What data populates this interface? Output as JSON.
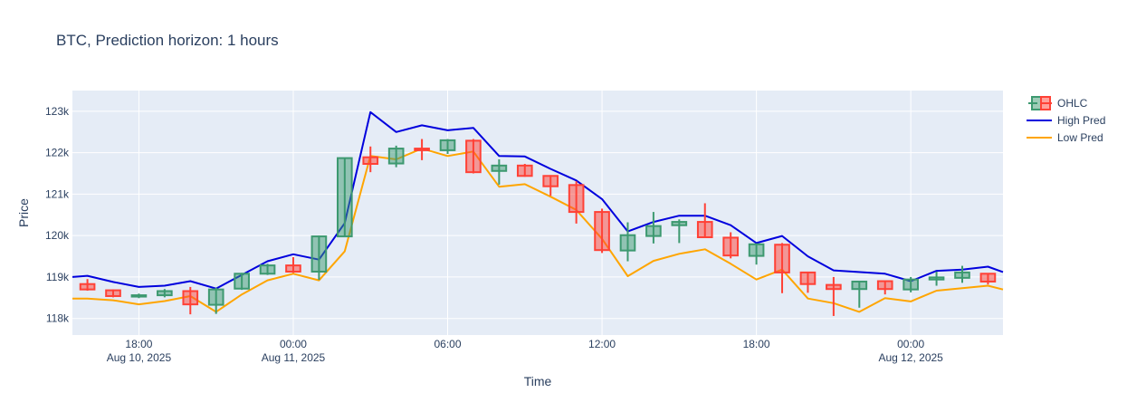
{
  "chart_data": {
    "type": "candlestick",
    "title": "BTC,  Prediction horizon: 1 hours",
    "xlabel": "Time",
    "ylabel": "Price",
    "ylim": [
      117600,
      123500
    ],
    "xlim": [
      "2025-08-10T15:25",
      "2025-08-12T03:35"
    ],
    "y_ticks": [
      {
        "value": 118000,
        "label": "118k"
      },
      {
        "value": 119000,
        "label": "119k"
      },
      {
        "value": 120000,
        "label": "120k"
      },
      {
        "value": 121000,
        "label": "121k"
      },
      {
        "value": 122000,
        "label": "122k"
      },
      {
        "value": 123000,
        "label": "123k"
      }
    ],
    "x_ticks": [
      {
        "time": "2025-08-10T18:00",
        "label": "18:00",
        "sublabel": "Aug 10, 2025"
      },
      {
        "time": "2025-08-11T00:00",
        "label": "00:00",
        "sublabel": "Aug 11, 2025"
      },
      {
        "time": "2025-08-11T06:00",
        "label": "06:00",
        "sublabel": ""
      },
      {
        "time": "2025-08-11T12:00",
        "label": "12:00",
        "sublabel": ""
      },
      {
        "time": "2025-08-11T18:00",
        "label": "18:00",
        "sublabel": ""
      },
      {
        "time": "2025-08-12T00:00",
        "label": "00:00",
        "sublabel": "Aug 12, 2025"
      }
    ],
    "grid": true,
    "legend_position": "top-right",
    "legend": [
      {
        "name": "OHLC",
        "kind": "candle"
      },
      {
        "name": "High Pred",
        "kind": "line",
        "color": "#0000dd"
      },
      {
        "name": "Low Pred",
        "kind": "line",
        "color": "#ffa500"
      }
    ],
    "colors": {
      "increasing": "#3d9970",
      "decreasing": "#ff4136",
      "high_pred": "#0000dd",
      "low_pred": "#ffa500",
      "plot_bg": "#e5ecf6",
      "grid": "#ffffff",
      "text": "#2a3f5f"
    },
    "ohlc": [
      {
        "t": "2025-08-10T16:00",
        "o": 118830,
        "h": 118950,
        "l": 118670,
        "c": 118700
      },
      {
        "t": "2025-08-10T17:00",
        "o": 118680,
        "h": 118700,
        "l": 118510,
        "c": 118540
      },
      {
        "t": "2025-08-10T18:00",
        "o": 118530,
        "h": 118600,
        "l": 118490,
        "c": 118560
      },
      {
        "t": "2025-08-10T19:00",
        "o": 118560,
        "h": 118710,
        "l": 118510,
        "c": 118660
      },
      {
        "t": "2025-08-10T20:00",
        "o": 118660,
        "h": 118760,
        "l": 118100,
        "c": 118340
      },
      {
        "t": "2025-08-10T21:00",
        "o": 118330,
        "h": 118740,
        "l": 118110,
        "c": 118700
      },
      {
        "t": "2025-08-10T22:00",
        "o": 118720,
        "h": 119100,
        "l": 118690,
        "c": 119080
      },
      {
        "t": "2025-08-10T23:00",
        "o": 119080,
        "h": 119320,
        "l": 119050,
        "c": 119280
      },
      {
        "t": "2025-08-11T00:00",
        "o": 119280,
        "h": 119480,
        "l": 119100,
        "c": 119130
      },
      {
        "t": "2025-08-11T01:00",
        "o": 119130,
        "h": 120000,
        "l": 118930,
        "c": 119980
      },
      {
        "t": "2025-08-11T02:00",
        "o": 119980,
        "h": 121880,
        "l": 119980,
        "c": 121870
      },
      {
        "t": "2025-08-11T03:00",
        "o": 121890,
        "h": 122150,
        "l": 121530,
        "c": 121730
      },
      {
        "t": "2025-08-11T04:00",
        "o": 121740,
        "h": 122170,
        "l": 121650,
        "c": 122100
      },
      {
        "t": "2025-08-11T05:00",
        "o": 122100,
        "h": 122330,
        "l": 121820,
        "c": 122060
      },
      {
        "t": "2025-08-11T06:00",
        "o": 122060,
        "h": 122330,
        "l": 121970,
        "c": 122300
      },
      {
        "t": "2025-08-11T07:00",
        "o": 122290,
        "h": 122330,
        "l": 121500,
        "c": 121530
      },
      {
        "t": "2025-08-11T08:00",
        "o": 121560,
        "h": 121840,
        "l": 121230,
        "c": 121690
      },
      {
        "t": "2025-08-11T09:00",
        "o": 121690,
        "h": 121730,
        "l": 121420,
        "c": 121440
      },
      {
        "t": "2025-08-11T10:00",
        "o": 121440,
        "h": 121460,
        "l": 120960,
        "c": 121190
      },
      {
        "t": "2025-08-11T11:00",
        "o": 121220,
        "h": 121310,
        "l": 120290,
        "c": 120570
      },
      {
        "t": "2025-08-11T12:00",
        "o": 120570,
        "h": 120650,
        "l": 119580,
        "c": 119650
      },
      {
        "t": "2025-08-11T13:00",
        "o": 119640,
        "h": 120320,
        "l": 119380,
        "c": 120010
      },
      {
        "t": "2025-08-11T14:00",
        "o": 119990,
        "h": 120570,
        "l": 119810,
        "c": 120230
      },
      {
        "t": "2025-08-11T15:00",
        "o": 120250,
        "h": 120390,
        "l": 119820,
        "c": 120330
      },
      {
        "t": "2025-08-11T16:00",
        "o": 120330,
        "h": 120780,
        "l": 119940,
        "c": 119960
      },
      {
        "t": "2025-08-11T17:00",
        "o": 119950,
        "h": 120080,
        "l": 119450,
        "c": 119520
      },
      {
        "t": "2025-08-11T18:00",
        "o": 119510,
        "h": 119810,
        "l": 119300,
        "c": 119790
      },
      {
        "t": "2025-08-11T19:00",
        "o": 119780,
        "h": 119820,
        "l": 118610,
        "c": 119110
      },
      {
        "t": "2025-08-11T20:00",
        "o": 119110,
        "h": 119130,
        "l": 118620,
        "c": 118830
      },
      {
        "t": "2025-08-11T21:00",
        "o": 118810,
        "h": 119000,
        "l": 118060,
        "c": 118710
      },
      {
        "t": "2025-08-11T22:00",
        "o": 118710,
        "h": 118900,
        "l": 118260,
        "c": 118890
      },
      {
        "t": "2025-08-11T23:00",
        "o": 118900,
        "h": 118900,
        "l": 118580,
        "c": 118710
      },
      {
        "t": "2025-08-12T00:00",
        "o": 118700,
        "h": 119000,
        "l": 118630,
        "c": 118940
      },
      {
        "t": "2025-08-12T01:00",
        "o": 118940,
        "h": 119130,
        "l": 118790,
        "c": 118990
      },
      {
        "t": "2025-08-12T02:00",
        "o": 118980,
        "h": 119270,
        "l": 118860,
        "c": 119110
      },
      {
        "t": "2025-08-12T03:00",
        "o": 119080,
        "h": 119090,
        "l": 118820,
        "c": 118890
      }
    ],
    "high_pred": [
      {
        "t": "2025-08-10T15:25",
        "v": 119000
      },
      {
        "t": "2025-08-10T16:00",
        "v": 119030
      },
      {
        "t": "2025-08-10T17:00",
        "v": 118880
      },
      {
        "t": "2025-08-10T18:00",
        "v": 118760
      },
      {
        "t": "2025-08-10T19:00",
        "v": 118790
      },
      {
        "t": "2025-08-10T20:00",
        "v": 118900
      },
      {
        "t": "2025-08-10T21:00",
        "v": 118720
      },
      {
        "t": "2025-08-10T22:00",
        "v": 119050
      },
      {
        "t": "2025-08-10T23:00",
        "v": 119380
      },
      {
        "t": "2025-08-11T00:00",
        "v": 119550
      },
      {
        "t": "2025-08-11T01:00",
        "v": 119420
      },
      {
        "t": "2025-08-11T02:00",
        "v": 120300
      },
      {
        "t": "2025-08-11T03:00",
        "v": 122980
      },
      {
        "t": "2025-08-11T04:00",
        "v": 122500
      },
      {
        "t": "2025-08-11T05:00",
        "v": 122660
      },
      {
        "t": "2025-08-11T06:00",
        "v": 122540
      },
      {
        "t": "2025-08-11T07:00",
        "v": 122600
      },
      {
        "t": "2025-08-11T08:00",
        "v": 121920
      },
      {
        "t": "2025-08-11T09:00",
        "v": 121910
      },
      {
        "t": "2025-08-11T10:00",
        "v": 121610
      },
      {
        "t": "2025-08-11T11:00",
        "v": 121330
      },
      {
        "t": "2025-08-11T12:00",
        "v": 120880
      },
      {
        "t": "2025-08-11T13:00",
        "v": 120100
      },
      {
        "t": "2025-08-11T14:00",
        "v": 120330
      },
      {
        "t": "2025-08-11T15:00",
        "v": 120480
      },
      {
        "t": "2025-08-11T16:00",
        "v": 120480
      },
      {
        "t": "2025-08-11T17:00",
        "v": 120250
      },
      {
        "t": "2025-08-11T18:00",
        "v": 119820
      },
      {
        "t": "2025-08-11T19:00",
        "v": 119990
      },
      {
        "t": "2025-08-11T20:00",
        "v": 119500
      },
      {
        "t": "2025-08-11T21:00",
        "v": 119160
      },
      {
        "t": "2025-08-11T23:00",
        "v": 119080
      },
      {
        "t": "2025-08-12T00:00",
        "v": 118900
      },
      {
        "t": "2025-08-12T01:00",
        "v": 119150
      },
      {
        "t": "2025-08-12T02:00",
        "v": 119180
      },
      {
        "t": "2025-08-12T03:00",
        "v": 119250
      },
      {
        "t": "2025-08-12T03:35",
        "v": 119120
      }
    ],
    "low_pred": [
      {
        "t": "2025-08-10T15:25",
        "v": 118480
      },
      {
        "t": "2025-08-10T16:00",
        "v": 118480
      },
      {
        "t": "2025-08-10T17:00",
        "v": 118440
      },
      {
        "t": "2025-08-10T18:00",
        "v": 118340
      },
      {
        "t": "2025-08-10T19:00",
        "v": 118420
      },
      {
        "t": "2025-08-10T20:00",
        "v": 118540
      },
      {
        "t": "2025-08-10T21:00",
        "v": 118160
      },
      {
        "t": "2025-08-10T22:00",
        "v": 118580
      },
      {
        "t": "2025-08-10T23:00",
        "v": 118920
      },
      {
        "t": "2025-08-11T00:00",
        "v": 119080
      },
      {
        "t": "2025-08-11T01:00",
        "v": 118920
      },
      {
        "t": "2025-08-11T02:00",
        "v": 119620
      },
      {
        "t": "2025-08-11T03:00",
        "v": 121920
      },
      {
        "t": "2025-08-11T04:00",
        "v": 121840
      },
      {
        "t": "2025-08-11T05:00",
        "v": 122100
      },
      {
        "t": "2025-08-11T06:00",
        "v": 121920
      },
      {
        "t": "2025-08-11T07:00",
        "v": 122030
      },
      {
        "t": "2025-08-11T08:00",
        "v": 121180
      },
      {
        "t": "2025-08-11T09:00",
        "v": 121240
      },
      {
        "t": "2025-08-11T10:00",
        "v": 120940
      },
      {
        "t": "2025-08-11T11:00",
        "v": 120620
      },
      {
        "t": "2025-08-11T12:00",
        "v": 119920
      },
      {
        "t": "2025-08-11T13:00",
        "v": 119020
      },
      {
        "t": "2025-08-11T14:00",
        "v": 119390
      },
      {
        "t": "2025-08-11T15:00",
        "v": 119560
      },
      {
        "t": "2025-08-11T16:00",
        "v": 119670
      },
      {
        "t": "2025-08-11T17:00",
        "v": 119320
      },
      {
        "t": "2025-08-11T18:00",
        "v": 118940
      },
      {
        "t": "2025-08-11T19:00",
        "v": 119180
      },
      {
        "t": "2025-08-11T20:00",
        "v": 118480
      },
      {
        "t": "2025-08-11T21:00",
        "v": 118370
      },
      {
        "t": "2025-08-11T22:00",
        "v": 118160
      },
      {
        "t": "2025-08-11T23:00",
        "v": 118490
      },
      {
        "t": "2025-08-12T00:00",
        "v": 118410
      },
      {
        "t": "2025-08-12T01:00",
        "v": 118670
      },
      {
        "t": "2025-08-12T02:00",
        "v": 118730
      },
      {
        "t": "2025-08-12T03:00",
        "v": 118790
      },
      {
        "t": "2025-08-12T03:35",
        "v": 118700
      }
    ]
  }
}
